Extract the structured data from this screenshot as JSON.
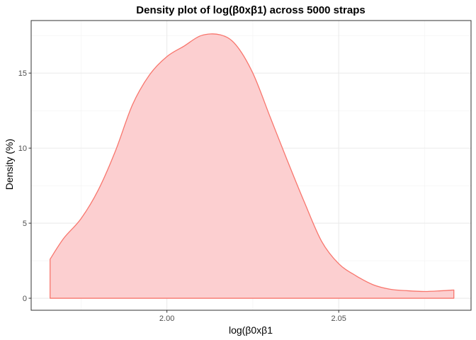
{
  "chart_data": {
    "type": "area",
    "title": "Density plot of log(β0xβ1) across 5000 straps",
    "xlabel": "log(β0xβ1",
    "ylabel": "Density (%)",
    "xlim": [
      1.9605,
      2.0885
    ],
    "ylim": [
      -0.8,
      18.5
    ],
    "x_ticks": [
      2.0,
      2.05
    ],
    "x_tick_labels": [
      "2.00",
      "2.05"
    ],
    "y_ticks": [
      0,
      5,
      10,
      15
    ],
    "y_tick_labels": [
      "0",
      "5",
      "10",
      "15"
    ],
    "grid": true,
    "legend": "none",
    "colors": {
      "fill": "#fccfd0",
      "line": "#f8766d"
    },
    "series": [
      {
        "x": [
          1.966,
          1.97,
          1.975,
          1.98,
          1.985,
          1.99,
          1.995,
          2.0,
          2.005,
          2.01,
          2.0155,
          2.02,
          2.025,
          2.03,
          2.035,
          2.04,
          2.045,
          2.05,
          2.055,
          2.06,
          2.065,
          2.07,
          2.075,
          2.08,
          2.0835
        ],
        "y": [
          2.6,
          4.0,
          5.3,
          7.2,
          9.8,
          12.9,
          14.9,
          16.1,
          16.8,
          17.5,
          17.55,
          16.9,
          15.0,
          12.1,
          9.2,
          6.4,
          3.8,
          2.3,
          1.5,
          0.9,
          0.6,
          0.5,
          0.45,
          0.5,
          0.55
        ]
      }
    ]
  }
}
